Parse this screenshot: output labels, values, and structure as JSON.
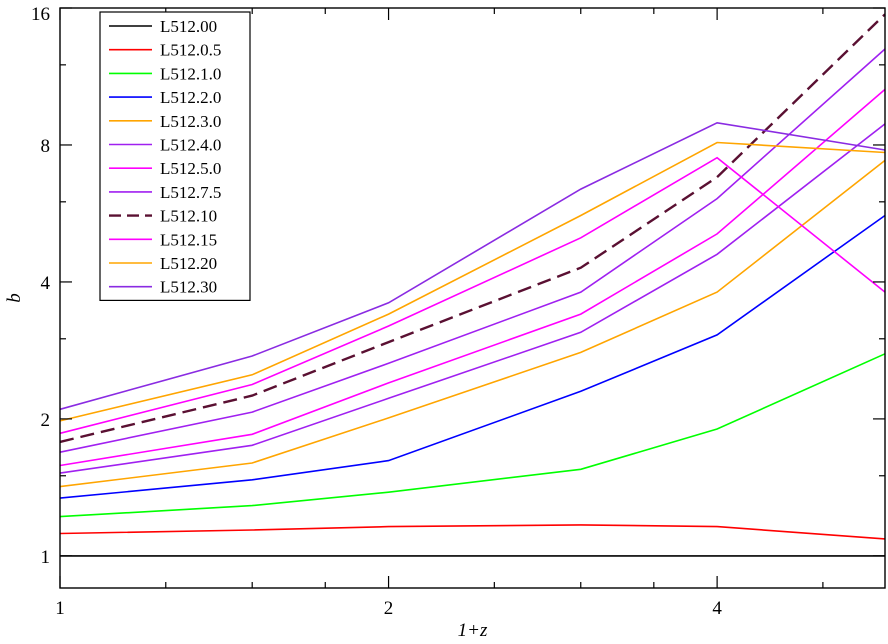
{
  "chart_data": {
    "type": "line",
    "title": "",
    "xlabel": "1+z",
    "ylabel": "b",
    "xscale": "log",
    "yscale": "log",
    "xlim": [
      1,
      5.7
    ],
    "ylim": [
      0.85,
      16
    ],
    "grid": false,
    "legend_position": "top-left",
    "x": [
      1,
      1.5,
      2,
      3,
      4,
      5.7
    ],
    "xticks": [
      1,
      2,
      4
    ],
    "xtick_labels": [
      "1",
      "2",
      "4"
    ],
    "xminor": [
      1.25,
      1.5,
      1.75,
      2.5,
      3,
      3.5,
      5
    ],
    "yticks": [
      1,
      2,
      4,
      8,
      16
    ],
    "ytick_labels": [
      "1",
      "2",
      "4",
      "8",
      "16"
    ],
    "yminor": [
      1.5,
      3,
      6,
      12
    ],
    "series": [
      {
        "name": "L512.00",
        "color": "#000000",
        "dashed": false,
        "values": [
          1.0,
          1.0,
          1.0,
          1.0,
          1.0,
          1.0
        ]
      },
      {
        "name": "L512.0.5",
        "color": "#ff0000",
        "dashed": false,
        "values": [
          1.12,
          1.14,
          1.16,
          1.17,
          1.16,
          1.09
        ]
      },
      {
        "name": "L512.1.0",
        "color": "#00ff00",
        "dashed": false,
        "values": [
          1.22,
          1.29,
          1.38,
          1.55,
          1.9,
          2.78
        ]
      },
      {
        "name": "L512.2.0",
        "color": "#0000ff",
        "dashed": false,
        "values": [
          1.34,
          1.47,
          1.62,
          2.3,
          3.06,
          5.6
        ]
      },
      {
        "name": "L512.3.0",
        "color": "#ffa500",
        "dashed": false,
        "values": [
          1.42,
          1.6,
          2.01,
          2.8,
          3.8,
          7.4
        ]
      },
      {
        "name": "L512.4.0",
        "color": "#a020f0",
        "dashed": false,
        "values": [
          1.52,
          1.75,
          2.22,
          3.1,
          4.6,
          8.9
        ]
      },
      {
        "name": "L512.5.0",
        "color": "#ff00ff",
        "dashed": false,
        "values": [
          1.58,
          1.85,
          2.4,
          3.4,
          5.1,
          10.6
        ]
      },
      {
        "name": "L512.7.5",
        "color": "#a020f0",
        "dashed": false,
        "values": [
          1.69,
          2.07,
          2.65,
          3.8,
          6.1,
          13.0
        ]
      },
      {
        "name": "L512.10",
        "color": "#5a1032",
        "dashed": true,
        "values": [
          1.78,
          2.25,
          2.95,
          4.3,
          6.8,
          15.5
        ]
      },
      {
        "name": "L512.15",
        "color": "#ff00ff",
        "dashed": false,
        "values": [
          1.86,
          2.38,
          3.2,
          5.0,
          7.5,
          3.8
        ]
      },
      {
        "name": "L512.20",
        "color": "#ffa500",
        "dashed": false,
        "values": [
          1.98,
          2.5,
          3.4,
          5.6,
          8.1,
          7.7
        ]
      },
      {
        "name": "L512.30",
        "color": "#8a2be2",
        "dashed": false,
        "values": [
          2.1,
          2.75,
          3.6,
          6.4,
          8.95,
          7.8
        ]
      }
    ]
  }
}
